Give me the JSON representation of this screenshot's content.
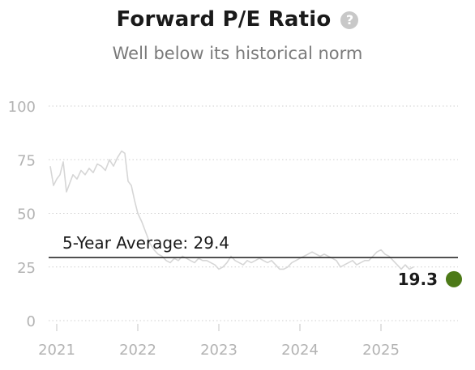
{
  "header": {
    "title": "Forward P/E Ratio",
    "subtitle": "Well below its historical norm",
    "help_icon": "question-circle-icon"
  },
  "chart_data": {
    "type": "line",
    "title": "Forward P/E Ratio",
    "subtitle": "Well below its historical norm",
    "xlabel": "",
    "ylabel": "",
    "xlim": [
      2020.9,
      2025.95
    ],
    "ylim": [
      0,
      100
    ],
    "grid": "horizontal dotted",
    "legend": "none",
    "y_ticks": [
      0,
      25,
      50,
      75,
      100
    ],
    "x_ticks": [
      {
        "value": 2021.0,
        "label": "2021"
      },
      {
        "value": 2022.0,
        "label": "2022"
      },
      {
        "value": 2023.0,
        "label": "2023"
      },
      {
        "value": 2024.0,
        "label": "2024"
      },
      {
        "value": 2025.0,
        "label": "2025"
      }
    ],
    "series": [
      {
        "color": "#d6d6d6",
        "x": [
          2020.92,
          2020.96,
          2021.0,
          2021.04,
          2021.08,
          2021.12,
          2021.16,
          2021.2,
          2021.25,
          2021.3,
          2021.35,
          2021.4,
          2021.45,
          2021.5,
          2021.55,
          2021.6,
          2021.65,
          2021.7,
          2021.75,
          2021.8,
          2021.84,
          2021.88,
          2021.92,
          2021.96,
          2022.0,
          2022.05,
          2022.1,
          2022.15,
          2022.2,
          2022.25,
          2022.3,
          2022.35,
          2022.4,
          2022.45,
          2022.5,
          2022.55,
          2022.6,
          2022.65,
          2022.7,
          2022.75,
          2022.8,
          2022.85,
          2022.9,
          2022.95,
          2023.0,
          2023.05,
          2023.1,
          2023.15,
          2023.2,
          2023.25,
          2023.3,
          2023.35,
          2023.4,
          2023.45,
          2023.5,
          2023.55,
          2023.6,
          2023.65,
          2023.7,
          2023.75,
          2023.8,
          2023.85,
          2023.9,
          2023.95,
          2024.0,
          2024.05,
          2024.1,
          2024.15,
          2024.2,
          2024.25,
          2024.3,
          2024.35,
          2024.4,
          2024.45,
          2024.5,
          2024.55,
          2024.6,
          2024.65,
          2024.7,
          2024.75,
          2024.8,
          2024.85,
          2024.9,
          2024.95,
          2025.0,
          2025.05,
          2025.1,
          2025.15,
          2025.2,
          2025.25,
          2025.3,
          2025.35,
          2025.4
        ],
        "values": [
          72,
          63,
          66,
          68,
          74,
          60,
          64,
          68,
          66,
          70,
          68,
          71,
          69,
          73,
          72,
          70,
          75,
          72,
          76,
          79,
          78,
          65,
          63,
          56,
          50,
          46,
          41,
          36,
          33,
          31,
          30,
          28,
          27,
          29,
          28,
          30,
          29,
          28,
          27,
          29,
          28,
          28,
          27,
          26,
          24,
          25,
          27,
          30,
          28,
          27,
          26,
          28,
          27,
          28,
          29,
          28,
          27,
          28,
          26,
          24,
          24,
          25,
          27,
          28,
          29,
          30,
          31,
          32,
          31,
          30,
          31,
          30,
          29,
          28,
          25,
          26,
          27,
          28,
          26,
          27,
          28,
          28,
          30,
          32,
          33,
          31,
          30,
          28,
          26,
          24,
          26,
          24,
          25
        ]
      }
    ],
    "reference_line": {
      "value": 29.4,
      "label": "5-Year Average: 29.4",
      "color": "#1a1a1a"
    },
    "current_point": {
      "x": 2025.9,
      "value": 19.3,
      "label": "19.3",
      "color": "#4d7a18"
    }
  }
}
